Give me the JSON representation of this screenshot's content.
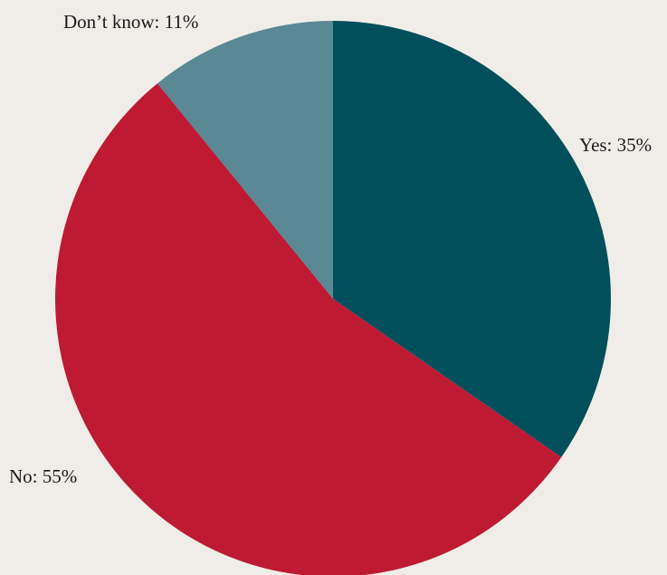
{
  "chart_data": {
    "type": "pie",
    "slices": [
      {
        "label": "Yes",
        "value": 35,
        "display": "Yes: 35%",
        "color": "#024f5c"
      },
      {
        "label": "No",
        "value": 55,
        "display": "No: 55%",
        "color": "#be1a33"
      },
      {
        "label": "Don't know",
        "value": 11,
        "display": "Don’t know: 11%",
        "color": "#5a8894"
      }
    ],
    "start_angle_deg": 0,
    "direction": "clockwise",
    "background": "#f0ede8"
  }
}
